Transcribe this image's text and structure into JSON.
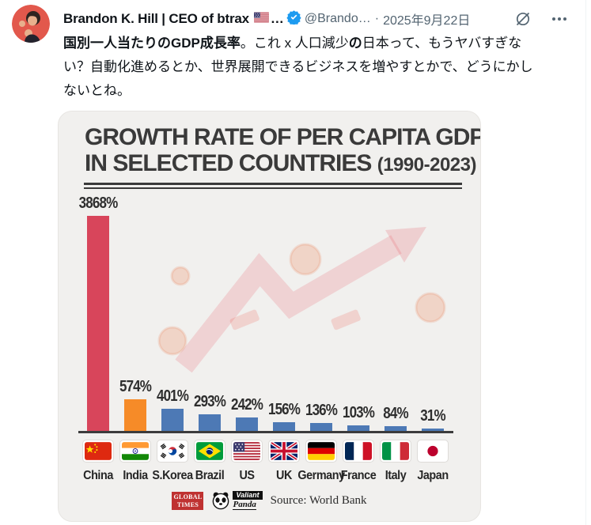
{
  "tweet": {
    "author_name": "Brandon K. Hill | CEO of btrax",
    "name_truncation": "…",
    "author_handle": "@Brando…",
    "separator": "·",
    "date": "2025年9月22日",
    "icons": {
      "avatar": "profile-photo",
      "us_flag": "us-flag-emoji",
      "verified": "verified-badge",
      "grok": "grok-slashed-circle-icon",
      "more": "more-options-icon"
    },
    "colors": {
      "verified": "#1d9bf0",
      "text": "#0f1419",
      "secondary": "#536471"
    },
    "body_segments": [
      {
        "text": "国別一人当たりのGDP成長率",
        "bold": true
      },
      {
        "text": "。これ x 人口減少",
        "bold": false
      },
      {
        "text": "の",
        "bold": true
      },
      {
        "text": "日本って、もうヤバすぎない？自動化進めるとか、世界展開できるビジネスを増やすとかで、どうにかしないとね。",
        "bold": false
      }
    ]
  },
  "chart_data": {
    "type": "bar",
    "title_line1": "GROWTH RATE OF PER CAPITA GDP",
    "title_line2": "IN SELECTED COUNTRIES",
    "title_period": "(1990-2023)",
    "categories": [
      "China",
      "India",
      "S.Korea",
      "Brazil",
      "US",
      "UK",
      "Germany",
      "France",
      "Italy",
      "Japan"
    ],
    "values": [
      3868,
      574,
      401,
      293,
      242,
      156,
      136,
      103,
      84,
      31
    ],
    "value_labels": [
      "3868%",
      "574%",
      "401%",
      "293%",
      "242%",
      "156%",
      "136%",
      "103%",
      "84%",
      "31%"
    ],
    "bar_colors": [
      "#d8455b",
      "#f68b28",
      "#4d79b5",
      "#4d79b5",
      "#4d79b5",
      "#4d79b5",
      "#4d79b5",
      "#4d79b5",
      "#4d79b5",
      "#4d79b5"
    ],
    "flag_icons": [
      "flag-china",
      "flag-india",
      "flag-south-korea",
      "flag-brazil",
      "flag-us",
      "flag-uk",
      "flag-germany",
      "flag-france",
      "flag-italy",
      "flag-japan"
    ],
    "ylim": [
      0,
      3900
    ],
    "grid": false,
    "legend": false,
    "background_watermark": "upward-trend-arrow",
    "source": "Source: World Bank",
    "footer": {
      "logo1_name": "global-times-logo",
      "logo1_lines": [
        "GLOBAL",
        "TIMES"
      ],
      "logo2_name": "valiant-panda-logo",
      "logo2_lines": [
        "Valiant",
        "Panda"
      ]
    }
  }
}
